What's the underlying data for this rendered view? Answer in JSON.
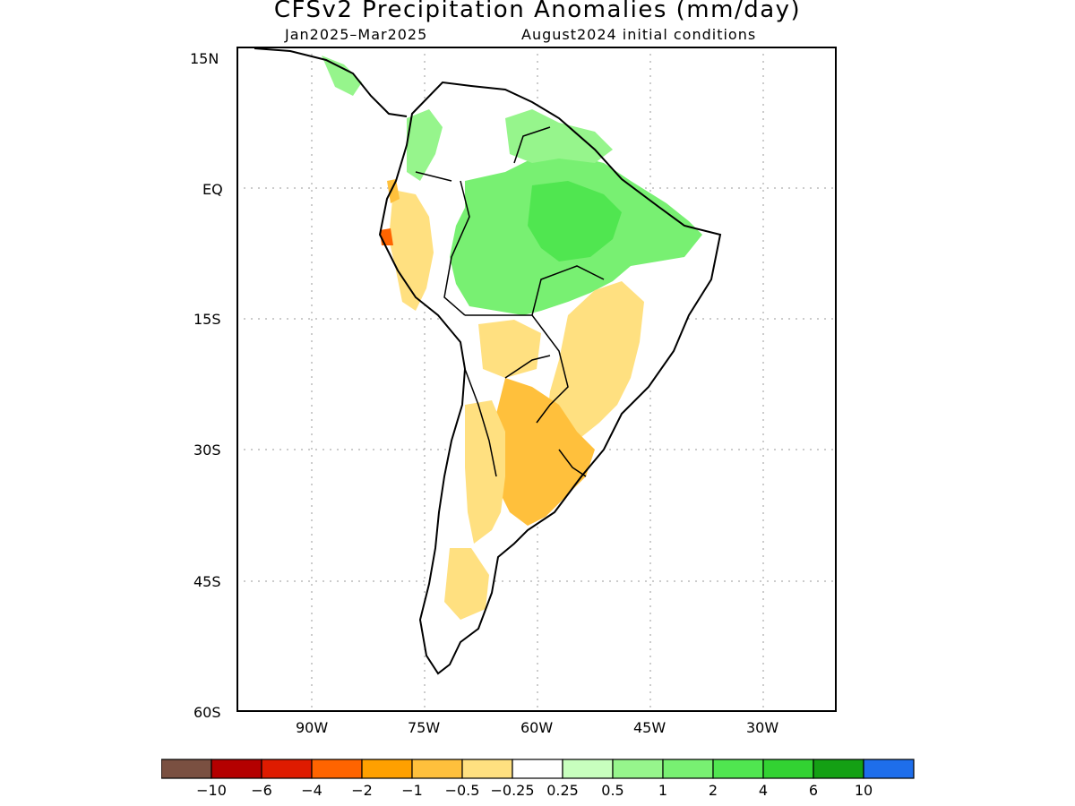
{
  "header": {
    "title": "CFSv2 Precipitation Anomalies (mm/day)",
    "period": "Jan2025–Mar2025",
    "initial_conditions": "August2024 initial conditions"
  },
  "map": {
    "region": "South America",
    "lat_labels": [
      "15N",
      "EQ",
      "15S",
      "30S",
      "45S",
      "60S"
    ],
    "lon_labels": [
      "90W",
      "75W",
      "60W",
      "45W",
      "30W"
    ],
    "grid": "dotted"
  },
  "colorbar": {
    "colors": [
      "#7a5041",
      "#b40000",
      "#de1b00",
      "#ff6400",
      "#ffa000",
      "#ffc03c",
      "#ffe080",
      "#ffffff",
      "#c8ffbe",
      "#96f58c",
      "#78f072",
      "#50e650",
      "#32d232",
      "#14a014",
      "#1e6eeb"
    ],
    "tick_labels": [
      "−10",
      "−6",
      "−4",
      "−2",
      "−1",
      "−0.5",
      "−0.25",
      "0.25",
      "0.5",
      "1",
      "2",
      "4",
      "6",
      "10"
    ]
  }
}
